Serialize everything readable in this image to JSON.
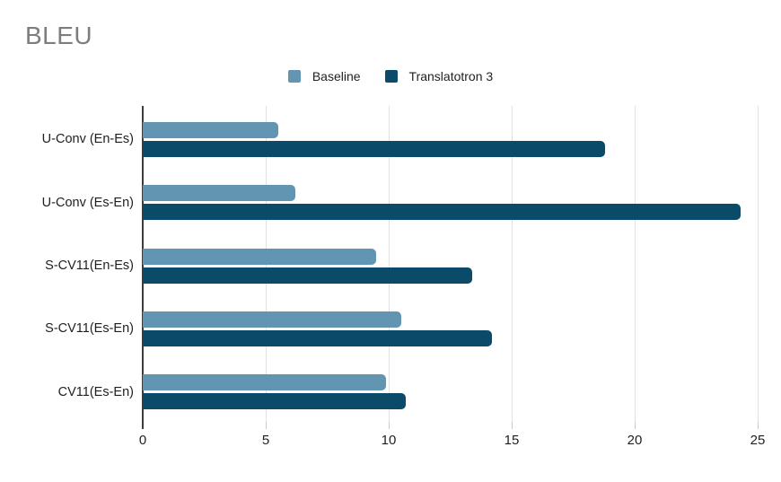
{
  "chart_data": {
    "type": "bar",
    "orientation": "horizontal",
    "title": "BLEU",
    "title_color": "#7d7d7d",
    "categories": [
      "U-Conv (En-Es)",
      "U-Conv (Es-En)",
      "S-CV11(En-Es)",
      "S-CV11(Es-En)",
      "CV11(Es-En)"
    ],
    "series": [
      {
        "name": "Baseline",
        "color": "#6295b2",
        "values": [
          5.5,
          6.2,
          9.5,
          10.5,
          9.9
        ]
      },
      {
        "name": "Translatotron 3",
        "color": "#0b4a68",
        "values": [
          18.8,
          24.3,
          13.4,
          14.2,
          10.7
        ]
      }
    ],
    "xlabel": "",
    "ylabel": "",
    "xlim": [
      0,
      25
    ],
    "xticks": [
      0,
      5,
      10,
      15,
      20,
      25
    ],
    "grid": "vertical-gridlines-on",
    "legend_position": "top-center",
    "gridline_color": "#e2e2e2",
    "axis_color": "#3c3c3c",
    "text_color": "#1f1f1f",
    "background_color": "#ffffff"
  }
}
